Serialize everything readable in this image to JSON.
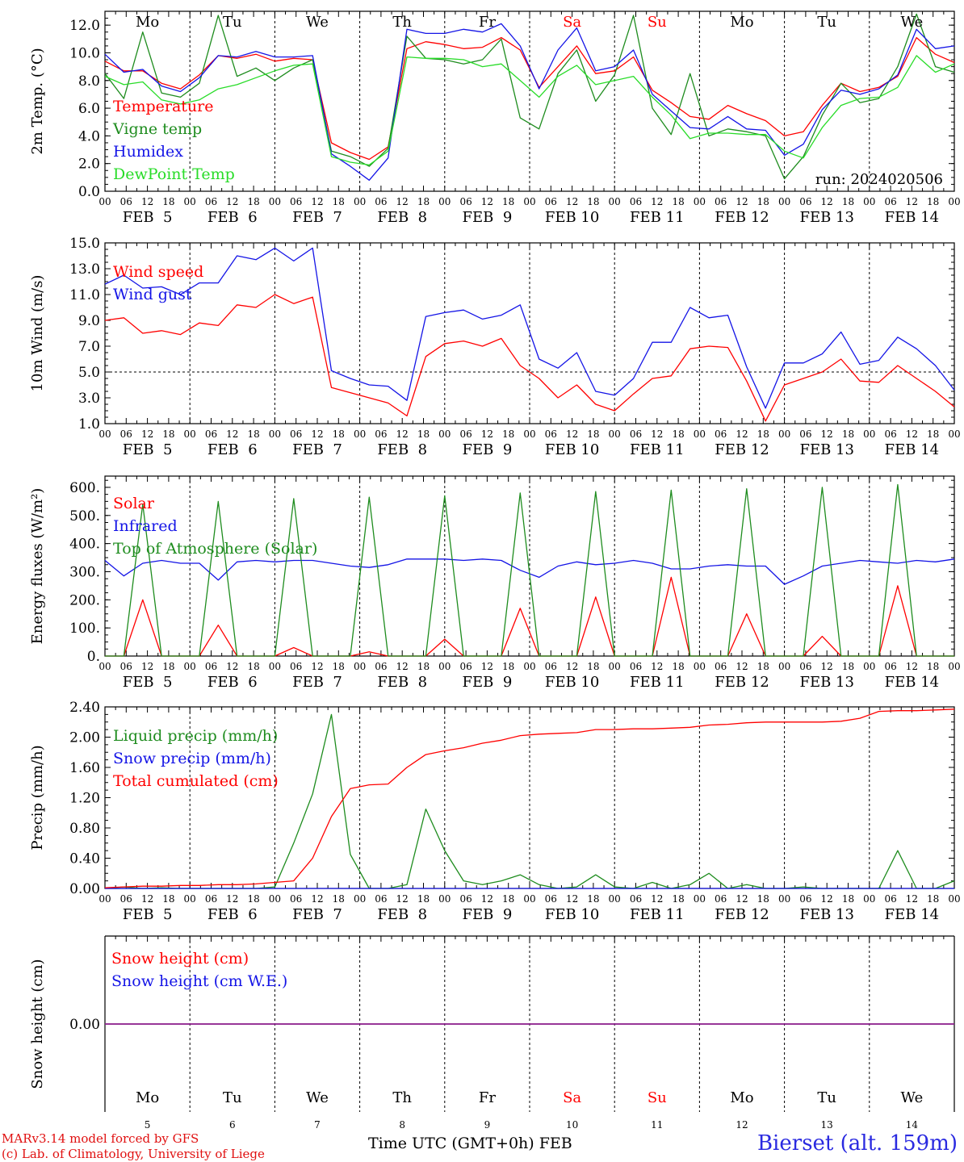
{
  "colors": {
    "red": "#ff0000",
    "green": "#1e8c1e",
    "blue": "#1414e6",
    "lightgreen": "#28dc28",
    "purple": "#8a1a8a",
    "footer_red": "#e01010",
    "station_blue": "#2a2ae0"
  },
  "days": {
    "weekdays": [
      "Mo",
      "Tu",
      "We",
      "Th",
      "Fr",
      "Sa",
      "Su",
      "Mo",
      "Tu",
      "We"
    ],
    "weekend_flags": [
      false,
      false,
      false,
      false,
      false,
      true,
      true,
      false,
      false,
      false
    ],
    "date_labels": [
      "FEB  5",
      "FEB  6",
      "FEB  7",
      "FEB  8",
      "FEB  9",
      "FEB 10",
      "FEB 11",
      "FEB 12",
      "FEB 13",
      "FEB 14"
    ],
    "day_numbers": [
      "5",
      "6",
      "7",
      "8",
      "9",
      "10",
      "11",
      "12",
      "13",
      "14"
    ],
    "hour_labels": [
      "00",
      "06",
      "12",
      "18"
    ],
    "last_hour_label": "00"
  },
  "footer": {
    "model": "MARv3.14 model forced by GFS",
    "lab": "(c) Lab. of Climatology, University of Liege",
    "time_label": "Time UTC (GMT+0h) FEB",
    "station": "Bierset (alt. 159m)"
  },
  "chart_data": [
    {
      "type": "line",
      "ylabel": "2m Temp. (°C)",
      "ylim": [
        0,
        13
      ],
      "yticks": [
        "0.0",
        "2.0",
        "4.0",
        "6.0",
        "8.0",
        "10.0",
        "12.0"
      ],
      "annotation": "run: 2024020506",
      "x_hours_start": "2024-02-05 00 UTC",
      "x_step_hours": 6,
      "series": [
        {
          "name": "Temperature",
          "color": "red",
          "values": [
            9.4,
            8.7,
            8.7,
            7.8,
            7.4,
            8.4,
            9.8,
            9.6,
            9.9,
            9.4,
            9.6,
            9.5,
            3.5,
            2.8,
            2.3,
            3.2,
            10.3,
            10.8,
            10.6,
            10.3,
            10.4,
            11.1,
            10.2,
            7.5,
            9.0,
            10.5,
            8.5,
            8.7,
            9.7,
            7.3,
            6.4,
            5.4,
            5.2,
            6.2,
            5.6,
            5.1,
            4.0,
            4.3,
            6.2,
            7.8,
            7.2,
            7.5,
            8.3,
            11.1,
            9.9,
            9.3
          ]
        },
        {
          "name": "Vigne temp",
          "color": "green",
          "values": [
            8.5,
            6.7,
            11.5,
            7.1,
            6.8,
            7.8,
            12.7,
            8.3,
            8.9,
            8.0,
            8.9,
            9.5,
            2.9,
            2.5,
            1.8,
            3.1,
            11.2,
            9.6,
            9.5,
            9.2,
            9.5,
            11.0,
            5.3,
            4.5,
            8.5,
            10.2,
            6.5,
            8.4,
            12.7,
            6.0,
            4.1,
            8.5,
            4.0,
            4.5,
            4.3,
            4.0,
            0.9,
            2.5,
            5.5,
            7.8,
            6.4,
            6.7,
            9.0,
            12.8,
            9.0,
            8.6
          ]
        },
        {
          "name": "Humidex",
          "color": "blue",
          "values": [
            9.9,
            8.6,
            8.8,
            7.6,
            7.2,
            8.2,
            9.8,
            9.7,
            10.1,
            9.7,
            9.7,
            9.8,
            2.7,
            1.8,
            0.8,
            2.4,
            11.7,
            11.4,
            11.4,
            11.7,
            11.5,
            12.1,
            10.5,
            7.4,
            10.2,
            11.8,
            8.7,
            9.0,
            10.2,
            7.0,
            5.8,
            4.6,
            4.5,
            5.4,
            4.5,
            4.4,
            2.6,
            3.4,
            5.9,
            7.3,
            7.0,
            7.4,
            8.4,
            11.7,
            10.3,
            10.5
          ]
        },
        {
          "name": "DewPoint Temp",
          "color": "lightgreen",
          "values": [
            8.3,
            7.7,
            7.9,
            6.6,
            6.3,
            6.6,
            7.4,
            7.7,
            8.2,
            8.7,
            9.1,
            9.2,
            2.5,
            2.1,
            1.9,
            2.9,
            9.7,
            9.6,
            9.6,
            9.5,
            9.0,
            9.2,
            8.0,
            6.8,
            8.3,
            9.1,
            7.7,
            8.0,
            8.3,
            6.8,
            5.5,
            3.8,
            4.2,
            4.2,
            4.1,
            4.1,
            2.9,
            2.4,
            4.6,
            6.2,
            6.7,
            6.8,
            7.5,
            9.8,
            8.6,
            9.2
          ]
        }
      ]
    },
    {
      "type": "line",
      "ylabel": "10m Wind (m/s)",
      "ylim": [
        1,
        15
      ],
      "yticks": [
        "1.0",
        "3.0",
        "5.0",
        "7.0",
        "9.0",
        "11.0",
        "13.0",
        "15.0"
      ],
      "reference_line": 5,
      "series": [
        {
          "name": "Wind speed",
          "color": "red",
          "values": [
            9.0,
            9.2,
            8.0,
            8.2,
            7.9,
            8.8,
            8.6,
            10.2,
            10.0,
            11.0,
            10.3,
            10.8,
            3.8,
            3.4,
            3.0,
            2.6,
            1.6,
            6.2,
            7.2,
            7.4,
            7.0,
            7.6,
            5.5,
            4.5,
            3.0,
            4.0,
            2.5,
            2.0,
            3.3,
            4.5,
            4.7,
            6.8,
            7.0,
            6.9,
            4.3,
            1.2,
            4.0,
            4.5,
            5.0,
            6.0,
            4.3,
            4.2,
            5.5,
            4.5,
            3.5,
            2.3
          ]
        },
        {
          "name": "Wind gust",
          "color": "blue",
          "values": [
            11.8,
            12.5,
            11.5,
            11.6,
            11.0,
            11.9,
            11.9,
            14.0,
            13.7,
            14.6,
            13.6,
            14.6,
            5.1,
            4.5,
            4.0,
            3.9,
            2.8,
            9.3,
            9.6,
            9.8,
            9.1,
            9.4,
            10.2,
            6.0,
            5.3,
            6.5,
            3.5,
            3.2,
            4.5,
            7.3,
            7.3,
            10.0,
            9.2,
            9.4,
            5.4,
            2.2,
            5.7,
            5.7,
            6.4,
            8.1,
            5.6,
            5.9,
            7.7,
            6.8,
            5.5,
            3.6
          ]
        }
      ]
    },
    {
      "type": "line",
      "ylabel": "Energy fluxes (W/m²)",
      "ylim": [
        0,
        640
      ],
      "yticks": [
        "0.",
        "100.",
        "200.",
        "300.",
        "400.",
        "500.",
        "600."
      ],
      "series": [
        {
          "name": "Solar",
          "color": "red",
          "values": [
            0,
            0,
            200,
            0,
            0,
            0,
            110,
            0,
            0,
            0,
            30,
            0,
            0,
            0,
            15,
            0,
            0,
            0,
            60,
            0,
            0,
            0,
            170,
            0,
            0,
            0,
            210,
            0,
            0,
            0,
            280,
            0,
            0,
            0,
            150,
            0,
            0,
            0,
            70,
            0,
            0,
            0,
            250,
            0,
            0,
            0
          ]
        },
        {
          "name": "Infrared",
          "color": "blue",
          "values": [
            340,
            285,
            330,
            340,
            330,
            330,
            270,
            335,
            340,
            335,
            340,
            340,
            330,
            320,
            315,
            325,
            345,
            345,
            345,
            340,
            345,
            340,
            305,
            280,
            320,
            335,
            325,
            330,
            340,
            330,
            310,
            310,
            320,
            325,
            320,
            320,
            255,
            285,
            320,
            330,
            340,
            335,
            330,
            340,
            335,
            345
          ]
        },
        {
          "name": "Top of Atmosphere (Solar)",
          "color": "green",
          "values": [
            0,
            0,
            540,
            0,
            0,
            0,
            550,
            0,
            0,
            0,
            560,
            0,
            0,
            0,
            565,
            0,
            0,
            0,
            570,
            0,
            0,
            0,
            580,
            0,
            0,
            0,
            585,
            0,
            0,
            0,
            590,
            0,
            0,
            0,
            595,
            0,
            0,
            0,
            600,
            0,
            0,
            0,
            610,
            0,
            0,
            0
          ]
        }
      ]
    },
    {
      "type": "line",
      "ylabel": "Precip (mm/h)",
      "ylim": [
        0,
        2.4
      ],
      "yticks": [
        "0.00",
        "0.40",
        "0.80",
        "1.20",
        "1.60",
        "2.00",
        "2.40"
      ],
      "series": [
        {
          "name": "Liquid precip (mm/h)",
          "color": "green",
          "values": [
            0,
            0.02,
            0,
            0.01,
            0,
            0,
            0,
            0,
            0,
            0.02,
            0.6,
            1.25,
            2.3,
            0.45,
            0,
            0,
            0.05,
            1.05,
            0.5,
            0.1,
            0.05,
            0.1,
            0.18,
            0.05,
            0,
            0.02,
            0.18,
            0.02,
            0,
            0.08,
            0,
            0.05,
            0.2,
            0,
            0.05,
            0,
            0,
            0.02,
            0,
            0,
            0,
            0,
            0.5,
            0,
            0,
            0.1
          ]
        },
        {
          "name": "Snow precip (mm/h)",
          "color": "blue",
          "values": [
            0,
            0,
            0,
            0,
            0,
            0,
            0,
            0,
            0,
            0,
            0,
            0,
            0,
            0,
            0,
            0,
            0,
            0,
            0,
            0,
            0,
            0,
            0,
            0,
            0,
            0,
            0,
            0,
            0,
            0,
            0,
            0,
            0,
            0,
            0,
            0,
            0,
            0,
            0,
            0,
            0,
            0,
            0,
            0,
            0,
            0
          ]
        },
        {
          "name": "Total cumulated (cm)",
          "color": "red",
          "values": [
            0.01,
            0.02,
            0.03,
            0.03,
            0.04,
            0.04,
            0.05,
            0.05,
            0.06,
            0.08,
            0.1,
            0.4,
            0.95,
            1.32,
            1.37,
            1.38,
            1.6,
            1.77,
            1.82,
            1.86,
            1.92,
            1.96,
            2.02,
            2.04,
            2.05,
            2.06,
            2.1,
            2.1,
            2.11,
            2.11,
            2.12,
            2.13,
            2.16,
            2.17,
            2.19,
            2.2,
            2.2,
            2.2,
            2.2,
            2.21,
            2.25,
            2.34,
            2.35,
            2.35,
            2.36,
            2.37
          ]
        }
      ]
    },
    {
      "type": "line",
      "ylabel": "Snow height (cm)",
      "ylim": [
        -1,
        1
      ],
      "yticks": [
        "0.00"
      ],
      "series": [
        {
          "name": "Snow height (cm)",
          "color": "red",
          "values": [
            0,
            0,
            0,
            0,
            0,
            0,
            0,
            0,
            0,
            0,
            0,
            0,
            0,
            0,
            0,
            0,
            0,
            0,
            0,
            0,
            0,
            0,
            0,
            0,
            0,
            0,
            0,
            0,
            0,
            0,
            0,
            0,
            0,
            0,
            0,
            0,
            0,
            0,
            0,
            0,
            0,
            0,
            0,
            0,
            0,
            0
          ]
        },
        {
          "name": "Snow height (cm W.E.)",
          "color": "blue",
          "values": [
            0,
            0,
            0,
            0,
            0,
            0,
            0,
            0,
            0,
            0,
            0,
            0,
            0,
            0,
            0,
            0,
            0,
            0,
            0,
            0,
            0,
            0,
            0,
            0,
            0,
            0,
            0,
            0,
            0,
            0,
            0,
            0,
            0,
            0,
            0,
            0,
            0,
            0,
            0,
            0,
            0,
            0,
            0,
            0,
            0,
            0
          ]
        }
      ]
    }
  ]
}
